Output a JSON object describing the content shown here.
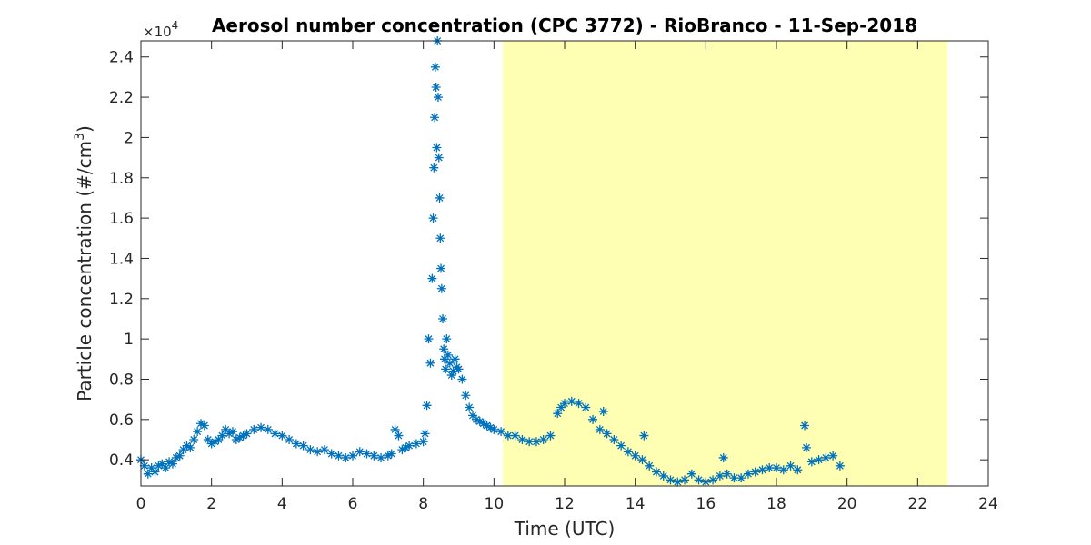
{
  "chart_data": {
    "type": "scatter",
    "title": "Aerosol number concentration (CPC 3772) - RioBranco - 11-Sep-2018",
    "xlabel": "Time (UTC)",
    "ylabel_main": "Particle concentration (#/cm",
    "ylabel_sup": "3",
    "ylabel_close": ")",
    "y_multiplier": "×10",
    "y_multiplier_exp": "4",
    "xlim": [
      0,
      24
    ],
    "ylim": [
      0.27,
      2.48
    ],
    "xticks": [
      0,
      2,
      4,
      6,
      8,
      10,
      12,
      14,
      16,
      18,
      20,
      22,
      24
    ],
    "yticks": [
      0.4,
      0.6,
      0.8,
      1,
      1.2,
      1.4,
      1.6,
      1.8,
      2,
      2.2,
      2.4
    ],
    "ytick_labels": [
      "0.4",
      "0.6",
      "0.8",
      "1",
      "1.2",
      "1.4",
      "1.6",
      "1.8",
      "2",
      "2.2",
      "2.4"
    ],
    "marker": "asterisk",
    "series_color": "#0072BD",
    "shaded_region": {
      "x": [
        10.25,
        22.85
      ],
      "color": "#FFFFB3"
    },
    "series": [
      {
        "x": [
          0.0,
          0.1,
          0.2,
          0.3,
          0.4,
          0.5,
          0.6,
          0.7,
          0.8,
          0.9,
          1.0,
          1.1,
          1.2,
          1.3,
          1.4,
          1.5,
          1.6,
          1.7,
          1.8,
          1.9,
          2.0,
          2.1,
          2.2,
          2.3,
          2.4,
          2.5,
          2.6,
          2.7,
          2.8,
          2.9,
          3.0,
          3.2,
          3.4,
          3.6,
          3.8,
          4.0,
          4.2,
          4.4,
          4.6,
          4.8,
          5.0,
          5.2,
          5.4,
          5.6,
          5.8,
          6.0,
          6.2,
          6.4,
          6.6,
          6.8,
          7.0,
          7.1,
          7.2,
          7.3,
          7.4,
          7.5,
          7.6,
          7.8,
          8.0,
          8.05,
          8.1,
          8.15,
          8.2,
          8.25,
          8.28,
          8.3,
          8.32,
          8.34,
          8.36,
          8.38,
          8.4,
          8.42,
          8.44,
          8.46,
          8.48,
          8.5,
          8.52,
          8.55,
          8.58,
          8.6,
          8.63,
          8.66,
          8.7,
          8.75,
          8.8,
          8.85,
          8.9,
          8.95,
          9.0,
          9.1,
          9.2,
          9.3,
          9.4,
          9.5,
          9.6,
          9.7,
          9.8,
          9.9,
          10.0,
          10.2,
          10.4,
          10.6,
          10.8,
          11.0,
          11.2,
          11.4,
          11.6,
          11.8,
          11.9,
          12.0,
          12.2,
          12.4,
          12.6,
          12.8,
          13.0,
          13.1,
          13.2,
          13.4,
          13.6,
          13.8,
          14.0,
          14.2,
          14.25,
          14.4,
          14.6,
          14.8,
          15.0,
          15.2,
          15.4,
          15.6,
          15.8,
          16.0,
          16.2,
          16.4,
          16.5,
          16.6,
          16.8,
          17.0,
          17.2,
          17.4,
          17.6,
          17.8,
          18.0,
          18.2,
          18.4,
          18.6,
          18.8,
          18.85,
          19.0,
          19.2,
          19.4,
          19.6,
          19.8
        ],
        "y": [
          0.4,
          0.37,
          0.33,
          0.36,
          0.34,
          0.37,
          0.38,
          0.36,
          0.39,
          0.38,
          0.41,
          0.42,
          0.45,
          0.47,
          0.46,
          0.5,
          0.54,
          0.58,
          0.57,
          0.5,
          0.48,
          0.49,
          0.5,
          0.52,
          0.55,
          0.53,
          0.54,
          0.5,
          0.51,
          0.52,
          0.53,
          0.55,
          0.56,
          0.55,
          0.53,
          0.52,
          0.5,
          0.48,
          0.47,
          0.45,
          0.44,
          0.45,
          0.43,
          0.42,
          0.41,
          0.42,
          0.44,
          0.43,
          0.42,
          0.41,
          0.42,
          0.43,
          0.55,
          0.52,
          0.45,
          0.46,
          0.47,
          0.48,
          0.49,
          0.53,
          0.67,
          1.0,
          0.88,
          1.3,
          1.6,
          1.85,
          2.1,
          2.35,
          2.25,
          1.95,
          2.48,
          2.2,
          1.9,
          1.7,
          1.5,
          1.35,
          1.25,
          1.1,
          0.95,
          0.9,
          0.85,
          1.0,
          0.92,
          0.88,
          0.82,
          0.84,
          0.9,
          0.86,
          0.85,
          0.8,
          0.72,
          0.66,
          0.62,
          0.6,
          0.59,
          0.58,
          0.57,
          0.56,
          0.55,
          0.54,
          0.52,
          0.52,
          0.5,
          0.49,
          0.49,
          0.5,
          0.52,
          0.63,
          0.66,
          0.68,
          0.69,
          0.68,
          0.66,
          0.6,
          0.55,
          0.64,
          0.53,
          0.5,
          0.47,
          0.44,
          0.42,
          0.4,
          0.52,
          0.37,
          0.34,
          0.32,
          0.3,
          0.29,
          0.3,
          0.33,
          0.3,
          0.29,
          0.3,
          0.32,
          0.41,
          0.33,
          0.31,
          0.31,
          0.33,
          0.34,
          0.35,
          0.36,
          0.36,
          0.35,
          0.37,
          0.35,
          0.57,
          0.46,
          0.39,
          0.4,
          0.41,
          0.42,
          0.37
        ]
      }
    ]
  }
}
